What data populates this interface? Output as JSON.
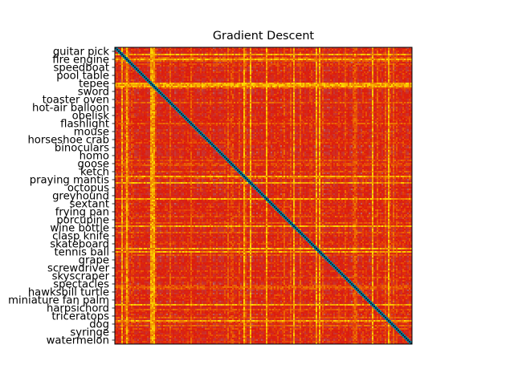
{
  "chart_data": {
    "type": "heatmap",
    "title": "Gradient Descent",
    "xlabel": "",
    "ylabel": "",
    "y_tick_labels": [
      "guitar pick",
      "fire engine",
      "speedboat",
      "pool table",
      "tepee",
      "sword",
      "toaster oven",
      "hot-air balloon",
      "obelisk",
      "flashlight",
      "mouse",
      "horseshoe crab",
      "binoculars",
      "homo",
      "goose",
      "ketch",
      "praying mantis",
      "octopus",
      "greyhound",
      "sextant",
      "frying pan",
      "porcupine",
      "wine bottle",
      "clasp knife",
      "skateboard",
      "tennis ball",
      "grape",
      "screwdriver",
      "skyscraper",
      "spectacles",
      "hawksbill turtle",
      "miniature fan palm",
      "harpsichord",
      "triceratops",
      "dog",
      "syringe",
      "watermelon"
    ],
    "matrix_size": 185,
    "diagonal": "minimum (dark blue)",
    "colormap": [
      "#002f4a",
      "#1a9ab0",
      "#a8a8a8",
      "#c43a3a",
      "#dd1b0c",
      "#f28a00",
      "#ffe800"
    ],
    "x_ticks_labeled": false
  }
}
